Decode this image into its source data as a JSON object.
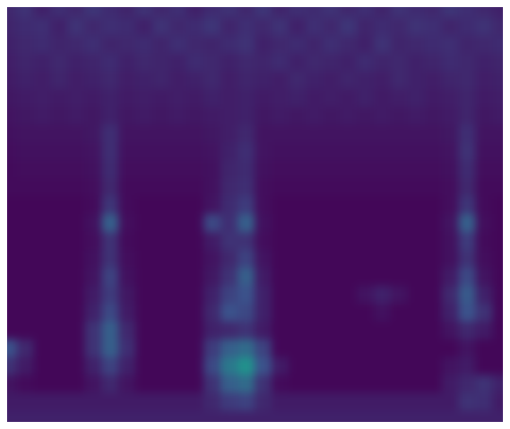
{
  "chart_data": {
    "type": "heatmap",
    "grid": false,
    "tick_labels": false,
    "color_range": [
      0,
      1
    ],
    "cells": [
      [
        0.12,
        0.15,
        0.1,
        0.14,
        0.12,
        0.16,
        0.13,
        0.11,
        0.15,
        0.12,
        0.14,
        0.1,
        0.13,
        0.15,
        0.12,
        0.16,
        0.11,
        0.14,
        0.13,
        0.15,
        0.12,
        0.14,
        0.11,
        0.15,
        0.13,
        0.12,
        0.16,
        0.14,
        0.12,
        0.1
      ],
      [
        0.11,
        0.13,
        0.14,
        0.1,
        0.15,
        0.12,
        0.14,
        0.13,
        0.1,
        0.15,
        0.12,
        0.13,
        0.16,
        0.11,
        0.14,
        0.12,
        0.15,
        0.1,
        0.14,
        0.12,
        0.16,
        0.11,
        0.13,
        0.12,
        0.15,
        0.14,
        0.11,
        0.13,
        0.15,
        0.12
      ],
      [
        0.1,
        0.12,
        0.13,
        0.11,
        0.12,
        0.14,
        0.11,
        0.12,
        0.13,
        0.11,
        0.14,
        0.12,
        0.11,
        0.13,
        0.15,
        0.1,
        0.12,
        0.13,
        0.11,
        0.14,
        0.12,
        0.1,
        0.15,
        0.11,
        0.12,
        0.13,
        0.14,
        0.11,
        0.12,
        0.13
      ],
      [
        0.09,
        0.11,
        0.1,
        0.12,
        0.1,
        0.11,
        0.13,
        0.1,
        0.12,
        0.11,
        0.1,
        0.13,
        0.12,
        0.1,
        0.12,
        0.11,
        0.13,
        0.1,
        0.12,
        0.11,
        0.1,
        0.13,
        0.11,
        0.12,
        0.1,
        0.11,
        0.13,
        0.12,
        0.1,
        0.11
      ],
      [
        0.08,
        0.1,
        0.09,
        0.11,
        0.09,
        0.1,
        0.12,
        0.09,
        0.1,
        0.11,
        0.09,
        0.1,
        0.12,
        0.09,
        0.11,
        0.1,
        0.09,
        0.12,
        0.1,
        0.09,
        0.11,
        0.1,
        0.09,
        0.12,
        0.1,
        0.09,
        0.11,
        0.12,
        0.09,
        0.1
      ],
      [
        0.07,
        0.08,
        0.09,
        0.08,
        0.09,
        0.08,
        0.1,
        0.08,
        0.09,
        0.08,
        0.09,
        0.08,
        0.1,
        0.09,
        0.1,
        0.08,
        0.09,
        0.1,
        0.08,
        0.09,
        0.08,
        0.1,
        0.08,
        0.09,
        0.1,
        0.08,
        0.09,
        0.11,
        0.08,
        0.09
      ],
      [
        0.06,
        0.07,
        0.08,
        0.07,
        0.08,
        0.07,
        0.1,
        0.07,
        0.08,
        0.07,
        0.08,
        0.07,
        0.08,
        0.09,
        0.1,
        0.07,
        0.08,
        0.07,
        0.08,
        0.07,
        0.08,
        0.07,
        0.08,
        0.07,
        0.08,
        0.07,
        0.08,
        0.11,
        0.07,
        0.08
      ],
      [
        0.05,
        0.06,
        0.06,
        0.06,
        0.06,
        0.07,
        0.14,
        0.06,
        0.06,
        0.06,
        0.06,
        0.06,
        0.07,
        0.09,
        0.12,
        0.06,
        0.06,
        0.06,
        0.06,
        0.06,
        0.06,
        0.06,
        0.06,
        0.06,
        0.06,
        0.06,
        0.07,
        0.14,
        0.06,
        0.06
      ],
      [
        0.04,
        0.05,
        0.05,
        0.05,
        0.05,
        0.06,
        0.14,
        0.05,
        0.05,
        0.05,
        0.05,
        0.05,
        0.06,
        0.1,
        0.14,
        0.06,
        0.05,
        0.05,
        0.05,
        0.05,
        0.05,
        0.05,
        0.05,
        0.05,
        0.05,
        0.05,
        0.06,
        0.15,
        0.05,
        0.05
      ],
      [
        0.03,
        0.04,
        0.04,
        0.04,
        0.04,
        0.05,
        0.13,
        0.04,
        0.04,
        0.04,
        0.04,
        0.04,
        0.05,
        0.11,
        0.13,
        0.05,
        0.04,
        0.04,
        0.04,
        0.04,
        0.04,
        0.04,
        0.04,
        0.04,
        0.04,
        0.04,
        0.05,
        0.13,
        0.04,
        0.04
      ],
      [
        0.03,
        0.03,
        0.03,
        0.03,
        0.03,
        0.04,
        0.12,
        0.03,
        0.03,
        0.03,
        0.03,
        0.03,
        0.05,
        0.12,
        0.14,
        0.04,
        0.03,
        0.03,
        0.03,
        0.03,
        0.03,
        0.03,
        0.03,
        0.03,
        0.03,
        0.03,
        0.04,
        0.12,
        0.03,
        0.03
      ],
      [
        0.02,
        0.02,
        0.02,
        0.02,
        0.02,
        0.03,
        0.16,
        0.03,
        0.02,
        0.02,
        0.02,
        0.02,
        0.06,
        0.13,
        0.18,
        0.04,
        0.02,
        0.02,
        0.02,
        0.02,
        0.02,
        0.02,
        0.02,
        0.02,
        0.02,
        0.02,
        0.04,
        0.16,
        0.03,
        0.02
      ],
      [
        0.02,
        0.02,
        0.02,
        0.02,
        0.02,
        0.05,
        0.3,
        0.04,
        0.02,
        0.02,
        0.02,
        0.02,
        0.22,
        0.14,
        0.3,
        0.05,
        0.02,
        0.02,
        0.02,
        0.02,
        0.02,
        0.02,
        0.02,
        0.02,
        0.02,
        0.02,
        0.06,
        0.3,
        0.04,
        0.02
      ],
      [
        0.02,
        0.02,
        0.02,
        0.02,
        0.02,
        0.04,
        0.15,
        0.03,
        0.02,
        0.02,
        0.02,
        0.02,
        0.08,
        0.15,
        0.15,
        0.04,
        0.02,
        0.02,
        0.02,
        0.02,
        0.02,
        0.02,
        0.02,
        0.02,
        0.02,
        0.02,
        0.05,
        0.18,
        0.03,
        0.02
      ],
      [
        0.02,
        0.02,
        0.02,
        0.02,
        0.02,
        0.05,
        0.15,
        0.04,
        0.02,
        0.02,
        0.02,
        0.02,
        0.06,
        0.12,
        0.2,
        0.06,
        0.02,
        0.02,
        0.02,
        0.02,
        0.02,
        0.02,
        0.02,
        0.02,
        0.02,
        0.02,
        0.05,
        0.15,
        0.04,
        0.02
      ],
      [
        0.02,
        0.02,
        0.02,
        0.02,
        0.02,
        0.06,
        0.2,
        0.05,
        0.02,
        0.02,
        0.02,
        0.02,
        0.07,
        0.15,
        0.3,
        0.08,
        0.02,
        0.02,
        0.02,
        0.02,
        0.02,
        0.02,
        0.02,
        0.02,
        0.02,
        0.02,
        0.08,
        0.22,
        0.06,
        0.02
      ],
      [
        0.02,
        0.02,
        0.02,
        0.02,
        0.02,
        0.08,
        0.18,
        0.07,
        0.02,
        0.02,
        0.02,
        0.02,
        0.1,
        0.2,
        0.25,
        0.1,
        0.02,
        0.02,
        0.02,
        0.02,
        0.02,
        0.06,
        0.1,
        0.06,
        0.02,
        0.02,
        0.12,
        0.28,
        0.1,
        0.02
      ],
      [
        0.02,
        0.02,
        0.02,
        0.02,
        0.02,
        0.1,
        0.22,
        0.08,
        0.02,
        0.02,
        0.02,
        0.02,
        0.12,
        0.25,
        0.22,
        0.1,
        0.02,
        0.02,
        0.02,
        0.02,
        0.02,
        0.02,
        0.05,
        0.02,
        0.02,
        0.02,
        0.1,
        0.25,
        0.15,
        0.02
      ],
      [
        0.02,
        0.02,
        0.02,
        0.02,
        0.02,
        0.15,
        0.3,
        0.12,
        0.02,
        0.02,
        0.02,
        0.02,
        0.1,
        0.12,
        0.15,
        0.08,
        0.02,
        0.02,
        0.02,
        0.02,
        0.02,
        0.02,
        0.02,
        0.02,
        0.02,
        0.02,
        0.06,
        0.12,
        0.08,
        0.02
      ],
      [
        0.25,
        0.12,
        0.02,
        0.02,
        0.02,
        0.15,
        0.3,
        0.14,
        0.02,
        0.02,
        0.02,
        0.02,
        0.18,
        0.3,
        0.35,
        0.2,
        0.02,
        0.02,
        0.02,
        0.02,
        0.02,
        0.02,
        0.02,
        0.02,
        0.02,
        0.02,
        0.02,
        0.06,
        0.02,
        0.02
      ],
      [
        0.15,
        0.08,
        0.02,
        0.02,
        0.02,
        0.1,
        0.2,
        0.1,
        0.02,
        0.02,
        0.02,
        0.02,
        0.22,
        0.4,
        0.5,
        0.25,
        0.08,
        0.02,
        0.02,
        0.02,
        0.02,
        0.02,
        0.02,
        0.02,
        0.02,
        0.02,
        0.06,
        0.08,
        0.02,
        0.02
      ],
      [
        0.06,
        0.03,
        0.02,
        0.02,
        0.02,
        0.06,
        0.12,
        0.06,
        0.02,
        0.02,
        0.02,
        0.02,
        0.15,
        0.3,
        0.35,
        0.15,
        0.03,
        0.02,
        0.02,
        0.02,
        0.02,
        0.02,
        0.02,
        0.02,
        0.02,
        0.02,
        0.08,
        0.12,
        0.15,
        0.1
      ],
      [
        0.08,
        0.08,
        0.08,
        0.08,
        0.08,
        0.08,
        0.08,
        0.08,
        0.08,
        0.08,
        0.08,
        0.08,
        0.12,
        0.18,
        0.2,
        0.12,
        0.08,
        0.08,
        0.08,
        0.08,
        0.08,
        0.08,
        0.08,
        0.08,
        0.08,
        0.08,
        0.08,
        0.15,
        0.14,
        0.08
      ],
      [
        0.1,
        0.1,
        0.1,
        0.1,
        0.1,
        0.1,
        0.1,
        0.1,
        0.1,
        0.1,
        0.1,
        0.1,
        0.1,
        0.1,
        0.1,
        0.1,
        0.1,
        0.1,
        0.1,
        0.1,
        0.1,
        0.1,
        0.1,
        0.1,
        0.1,
        0.1,
        0.1,
        0.1,
        0.1,
        0.1
      ]
    ]
  }
}
